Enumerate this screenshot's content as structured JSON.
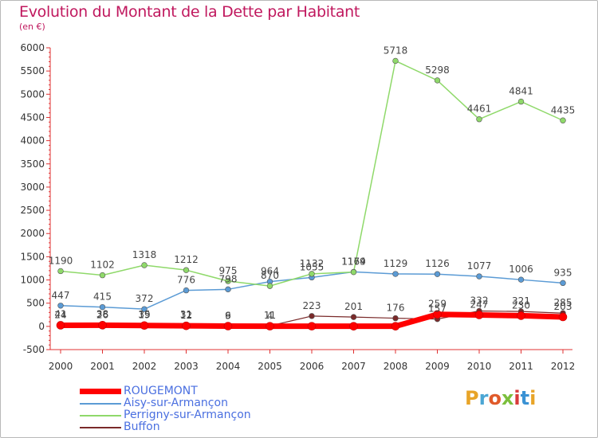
{
  "header": {
    "title": "Evolution du Montant de la Dette par Habitant",
    "subtitle": "(en €)"
  },
  "brand": {
    "text": "Proxiti",
    "colors": [
      "#e8a428",
      "#4ba6d4",
      "#e05a2a",
      "#7bbf3c",
      "#d93b3b",
      "#3a92d4",
      "#e8a428"
    ]
  },
  "chart_data": {
    "type": "line",
    "x": [
      2000,
      2001,
      2002,
      2003,
      2004,
      2005,
      2006,
      2007,
      2008,
      2009,
      2010,
      2011,
      2012
    ],
    "ylim": [
      -500,
      6000
    ],
    "yticks": [
      -500,
      0,
      500,
      1000,
      1500,
      2000,
      2500,
      3000,
      3500,
      4000,
      4500,
      5000,
      5500,
      6000
    ],
    "grid": false,
    "legend_position": "bottom",
    "series": [
      {
        "name": "ROUGEMONT",
        "color": "#ff0000",
        "width": 7,
        "values": [
          24,
          26,
          19,
          12,
          6,
          4,
          4,
          3,
          3,
          259,
          247,
          230,
          203
        ],
        "labels": [
          "24",
          "26",
          "19",
          "12",
          "6",
          "4",
          "",
          "",
          "",
          "259",
          "247",
          "230",
          "203"
        ]
      },
      {
        "name": "Aisy-sur-Armançon",
        "color": "#5b9bd5",
        "width": 1.5,
        "values": [
          447,
          415,
          372,
          776,
          798,
          964,
          1055,
          1174,
          1129,
          1126,
          1077,
          1006,
          935
        ],
        "labels": [
          "447",
          "415",
          "372",
          "776",
          "798",
          "964",
          "1055",
          "1174",
          "1129",
          "1126",
          "1077",
          "1006",
          "935"
        ]
      },
      {
        "name": "Perrigny-sur-Armançon",
        "color": "#8fd96a",
        "width": 1.5,
        "values": [
          1190,
          1102,
          1318,
          1212,
          975,
          870,
          1132,
          1169,
          5718,
          5298,
          4461,
          4841,
          4435
        ],
        "labels": [
          "1190",
          "1102",
          "1318",
          "1212",
          "975",
          "870",
          "1132",
          "1169",
          "5718",
          "5298",
          "4461",
          "4841",
          "4435"
        ]
      },
      {
        "name": "Buffon",
        "color": "#7a2a2a",
        "width": 1.2,
        "values": [
          41,
          38,
          35,
          31,
          9,
          11,
          223,
          201,
          176,
          157,
          332,
          321,
          285
        ],
        "labels": [
          "41",
          "38",
          "35",
          "31",
          "9",
          "11",
          "223",
          "201",
          "176",
          "157",
          "332",
          "321",
          "285"
        ]
      }
    ]
  }
}
